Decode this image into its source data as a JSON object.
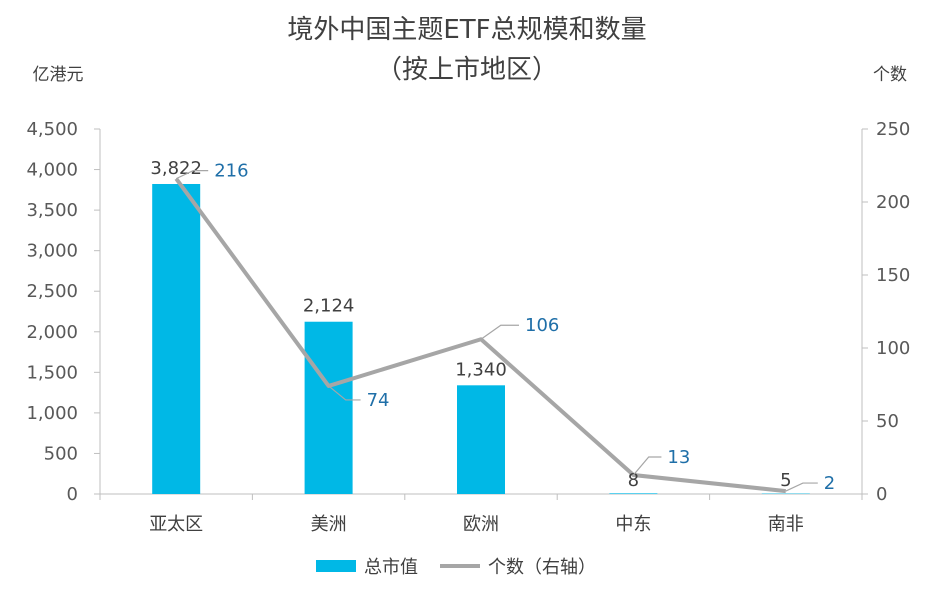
{
  "chart_data": {
    "type": "bar",
    "title": "境外中国主题ETF总规模和数量",
    "subtitle": "（按上市地区）",
    "ylabel_left": "亿港元",
    "ylabel_right": "个数",
    "categories": [
      "亚太区",
      "美洲",
      "欧洲",
      "中东",
      "南非"
    ],
    "y_left_ticks": [
      "0",
      "500",
      "1,000",
      "1,500",
      "2,000",
      "2,500",
      "3,000",
      "3,500",
      "4,000",
      "4,500"
    ],
    "y_right_ticks": [
      "0",
      "50",
      "100",
      "150",
      "200",
      "250"
    ],
    "ylim_left": [
      0,
      4500
    ],
    "ylim_right": [
      0,
      250
    ],
    "series": [
      {
        "name": "总市值",
        "type": "bar",
        "axis": "left",
        "values": [
          3822,
          2124,
          1340,
          8,
          5
        ],
        "labels": [
          "3,822",
          "2,124",
          "1,340",
          "8",
          "5"
        ],
        "color": "#00B8E6"
      },
      {
        "name": "个数（右轴）",
        "type": "line",
        "axis": "right",
        "values": [
          216,
          74,
          106,
          13,
          2
        ],
        "labels": [
          "216",
          "74",
          "106",
          "13",
          "2"
        ],
        "color": "#A6A6A6",
        "label_color": "#1F6FA8"
      }
    ],
    "legend_position": "bottom",
    "grid": false
  }
}
